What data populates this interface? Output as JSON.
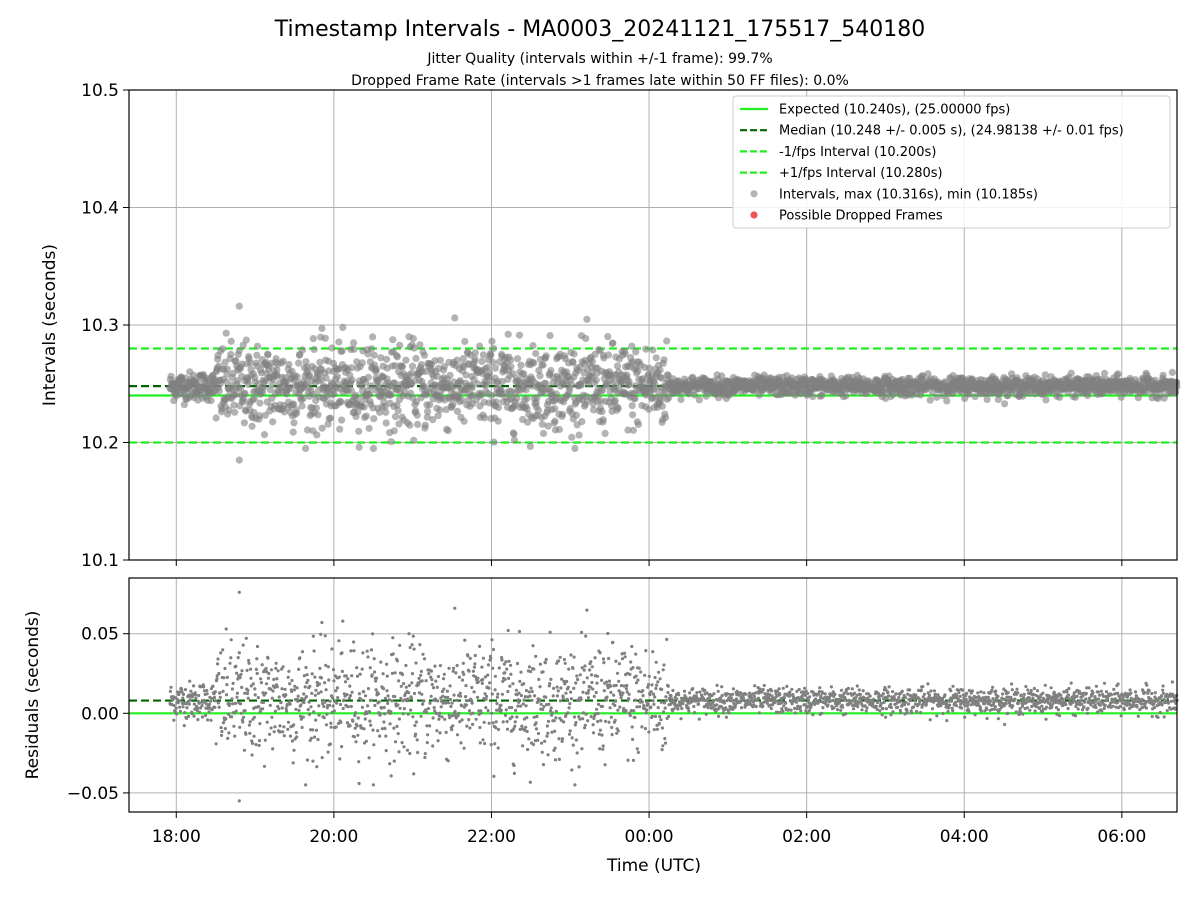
{
  "header": {
    "title": "Timestamp Intervals - MA0003_20241121_175517_540180",
    "subtitle_1": "Jitter Quality (intervals within +/-1 frame): 99.7%",
    "subtitle_2": "Dropped Frame Rate (intervals >1 frames late within 50 FF files): 0.0%"
  },
  "colors": {
    "expected": "#22ee22",
    "median": "#006400",
    "bounds": "#22ee22",
    "points": "#808080",
    "dropped": "#ee5555",
    "grid": "#b0b0b0"
  },
  "chart_data": [
    {
      "type": "scatter",
      "xlabel": "",
      "ylabel": "Intervals (seconds)",
      "x_range_hours": [
        17.4,
        30.7
      ],
      "ylim": [
        10.1,
        10.5
      ],
      "yticks": [
        10.1,
        10.2,
        10.3,
        10.4,
        10.5
      ],
      "ytick_labels": [
        "10.1",
        "10.2",
        "10.3",
        "10.4",
        "10.5"
      ],
      "xticks_hours": [
        18,
        20,
        22,
        24,
        26,
        28,
        30
      ],
      "grid": true,
      "legend_position": "top-right",
      "lines": [
        {
          "name": "Expected (10.240s), (25.00000 fps)",
          "y": 10.24,
          "style": "solid",
          "color": "#22ee22"
        },
        {
          "name": "Median (10.248 +/- 0.005 s), (24.98138 +/- 0.01 fps)",
          "y": 10.248,
          "style": "dashed",
          "color": "#006400"
        },
        {
          "name": "-1/fps Interval (10.200s)",
          "y": 10.2,
          "style": "dashed",
          "color": "#22ee22"
        },
        {
          "name": "+1/fps Interval (10.280s)",
          "y": 10.28,
          "style": "dashed",
          "color": "#22ee22"
        }
      ],
      "series": [
        {
          "name": "Intervals, max (10.316s), min (10.185s)",
          "color": "#808080",
          "x_start_hours": 17.92,
          "x_end_hours": 30.7,
          "center": 10.248,
          "max": 10.316,
          "min": 10.185,
          "segments": [
            {
              "from": 17.92,
              "to": 18.5,
              "spread": 0.006
            },
            {
              "from": 18.5,
              "to": 24.25,
              "spread": 0.018
            },
            {
              "from": 24.25,
              "to": 30.7,
              "spread": 0.004
            }
          ]
        },
        {
          "name": "Possible Dropped Frames",
          "color": "#ee5555",
          "count": 0
        }
      ]
    },
    {
      "type": "scatter",
      "xlabel": "Time (UTC)",
      "ylabel": "Residuals (seconds)",
      "x_range_hours": [
        17.4,
        30.7
      ],
      "ylim": [
        -0.062,
        0.085
      ],
      "yticks": [
        -0.05,
        0.0,
        0.05
      ],
      "ytick_labels": [
        "−0.05",
        "0.00",
        "0.05"
      ],
      "xticks_hours": [
        18,
        20,
        22,
        24,
        26,
        28,
        30
      ],
      "xtick_labels": [
        "18:00",
        "20:00",
        "22:00",
        "00:00",
        "02:00",
        "04:00",
        "06:00"
      ],
      "grid": true,
      "lines": [
        {
          "y": 0.0,
          "style": "solid",
          "color": "#22ee22"
        },
        {
          "y": 0.008,
          "style": "dashed",
          "color": "#006400"
        }
      ],
      "series": [
        {
          "color": "#808080",
          "center": 0.008,
          "max": 0.076,
          "min": -0.055
        }
      ]
    }
  ]
}
